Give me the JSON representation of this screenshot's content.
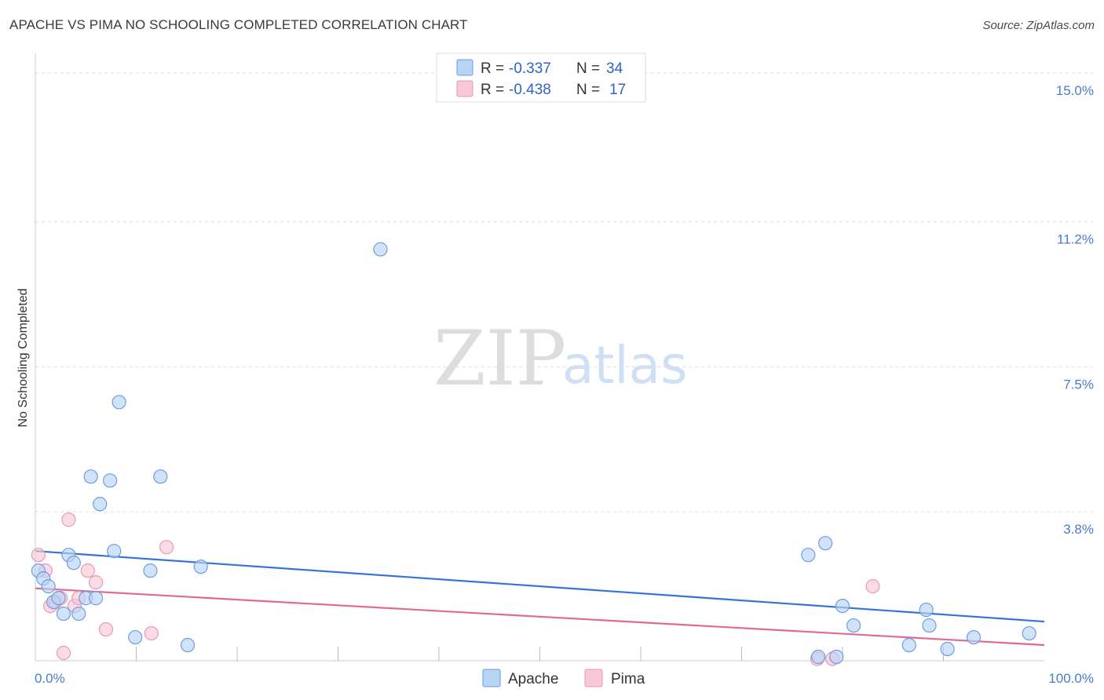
{
  "title": "APACHE VS PIMA NO SCHOOLING COMPLETED CORRELATION CHART",
  "source": "Source: ZipAtlas.com",
  "watermark": {
    "zip": "ZIP",
    "atlas": "atlas"
  },
  "colors": {
    "apache_fill": "#b8d4f5",
    "apache_stroke": "#6d9de0",
    "apache_line": "#3574d4",
    "pima_fill": "#f9c8d8",
    "pima_stroke": "#e89ab4",
    "pima_line": "#e06a94",
    "grid": "#dddddd",
    "tick_label": "#4a7bd0"
  },
  "legend_top": {
    "rows": [
      {
        "series": "Apache",
        "r_label": "R =",
        "r_value": "-0.337",
        "n_label": "N =",
        "n_value": "34"
      },
      {
        "series": "Pima",
        "r_label": "R =",
        "r_value": "-0.438",
        "n_label": "N =",
        "n_value": "17"
      }
    ]
  },
  "chart_data": {
    "type": "scatter",
    "title": "APACHE VS PIMA NO SCHOOLING COMPLETED CORRELATION CHART",
    "xlabel": "",
    "ylabel": "No Schooling Completed",
    "xlim": [
      0,
      100
    ],
    "ylim": [
      0,
      15.5
    ],
    "x_tick_labels": [
      {
        "value": 0,
        "label": "0.0%"
      },
      {
        "value": 100,
        "label": "100.0%"
      }
    ],
    "y_ticks": [
      {
        "value": 3.8,
        "label": "3.8%"
      },
      {
        "value": 7.5,
        "label": "7.5%"
      },
      {
        "value": 11.2,
        "label": "11.2%"
      },
      {
        "value": 15.0,
        "label": "15.0%"
      }
    ],
    "x_minor_ticks": [
      10,
      20,
      30,
      40,
      50,
      60,
      70,
      80,
      90
    ],
    "grid": true,
    "legend_position": "top-center",
    "series": [
      {
        "name": "Apache",
        "points": [
          [
            0.3,
            2.3
          ],
          [
            0.8,
            2.1
          ],
          [
            1.3,
            1.9
          ],
          [
            1.8,
            1.5
          ],
          [
            2.3,
            1.6
          ],
          [
            2.8,
            1.2
          ],
          [
            3.3,
            2.7
          ],
          [
            3.8,
            2.5
          ],
          [
            4.3,
            1.2
          ],
          [
            5.0,
            1.6
          ],
          [
            5.5,
            4.7
          ],
          [
            6.0,
            1.6
          ],
          [
            6.4,
            4.0
          ],
          [
            7.4,
            4.6
          ],
          [
            7.8,
            2.8
          ],
          [
            8.3,
            6.6
          ],
          [
            9.9,
            0.6
          ],
          [
            11.4,
            2.3
          ],
          [
            12.4,
            4.7
          ],
          [
            15.1,
            0.4
          ],
          [
            16.4,
            2.4
          ],
          [
            34.2,
            10.5
          ],
          [
            76.6,
            2.7
          ],
          [
            77.6,
            0.1
          ],
          [
            78.3,
            3.0
          ],
          [
            79.4,
            0.1
          ],
          [
            80.0,
            1.4
          ],
          [
            81.1,
            0.9
          ],
          [
            86.6,
            0.4
          ],
          [
            88.3,
            1.3
          ],
          [
            88.6,
            0.9
          ],
          [
            90.4,
            0.3
          ],
          [
            93.0,
            0.6
          ],
          [
            98.5,
            0.7
          ]
        ],
        "trend": {
          "start": [
            0,
            2.8
          ],
          "end": [
            100,
            1.0
          ]
        }
      },
      {
        "name": "Pima",
        "points": [
          [
            0.3,
            2.7
          ],
          [
            1.0,
            2.3
          ],
          [
            1.5,
            1.4
          ],
          [
            2.0,
            1.5
          ],
          [
            2.5,
            1.6
          ],
          [
            2.8,
            0.2
          ],
          [
            3.3,
            3.6
          ],
          [
            3.9,
            1.4
          ],
          [
            4.3,
            1.6
          ],
          [
            5.2,
            2.3
          ],
          [
            6.0,
            2.0
          ],
          [
            7.0,
            0.8
          ],
          [
            11.5,
            0.7
          ],
          [
            13.0,
            2.9
          ],
          [
            79.0,
            0.05
          ],
          [
            83.0,
            1.9
          ],
          [
            77.5,
            0.05
          ]
        ],
        "trend": {
          "start": [
            0,
            1.85
          ],
          "end": [
            100,
            0.4
          ]
        }
      }
    ]
  },
  "legend_bottom": [
    {
      "series": "Apache",
      "label": "Apache"
    },
    {
      "series": "Pima",
      "label": "Pima"
    }
  ]
}
